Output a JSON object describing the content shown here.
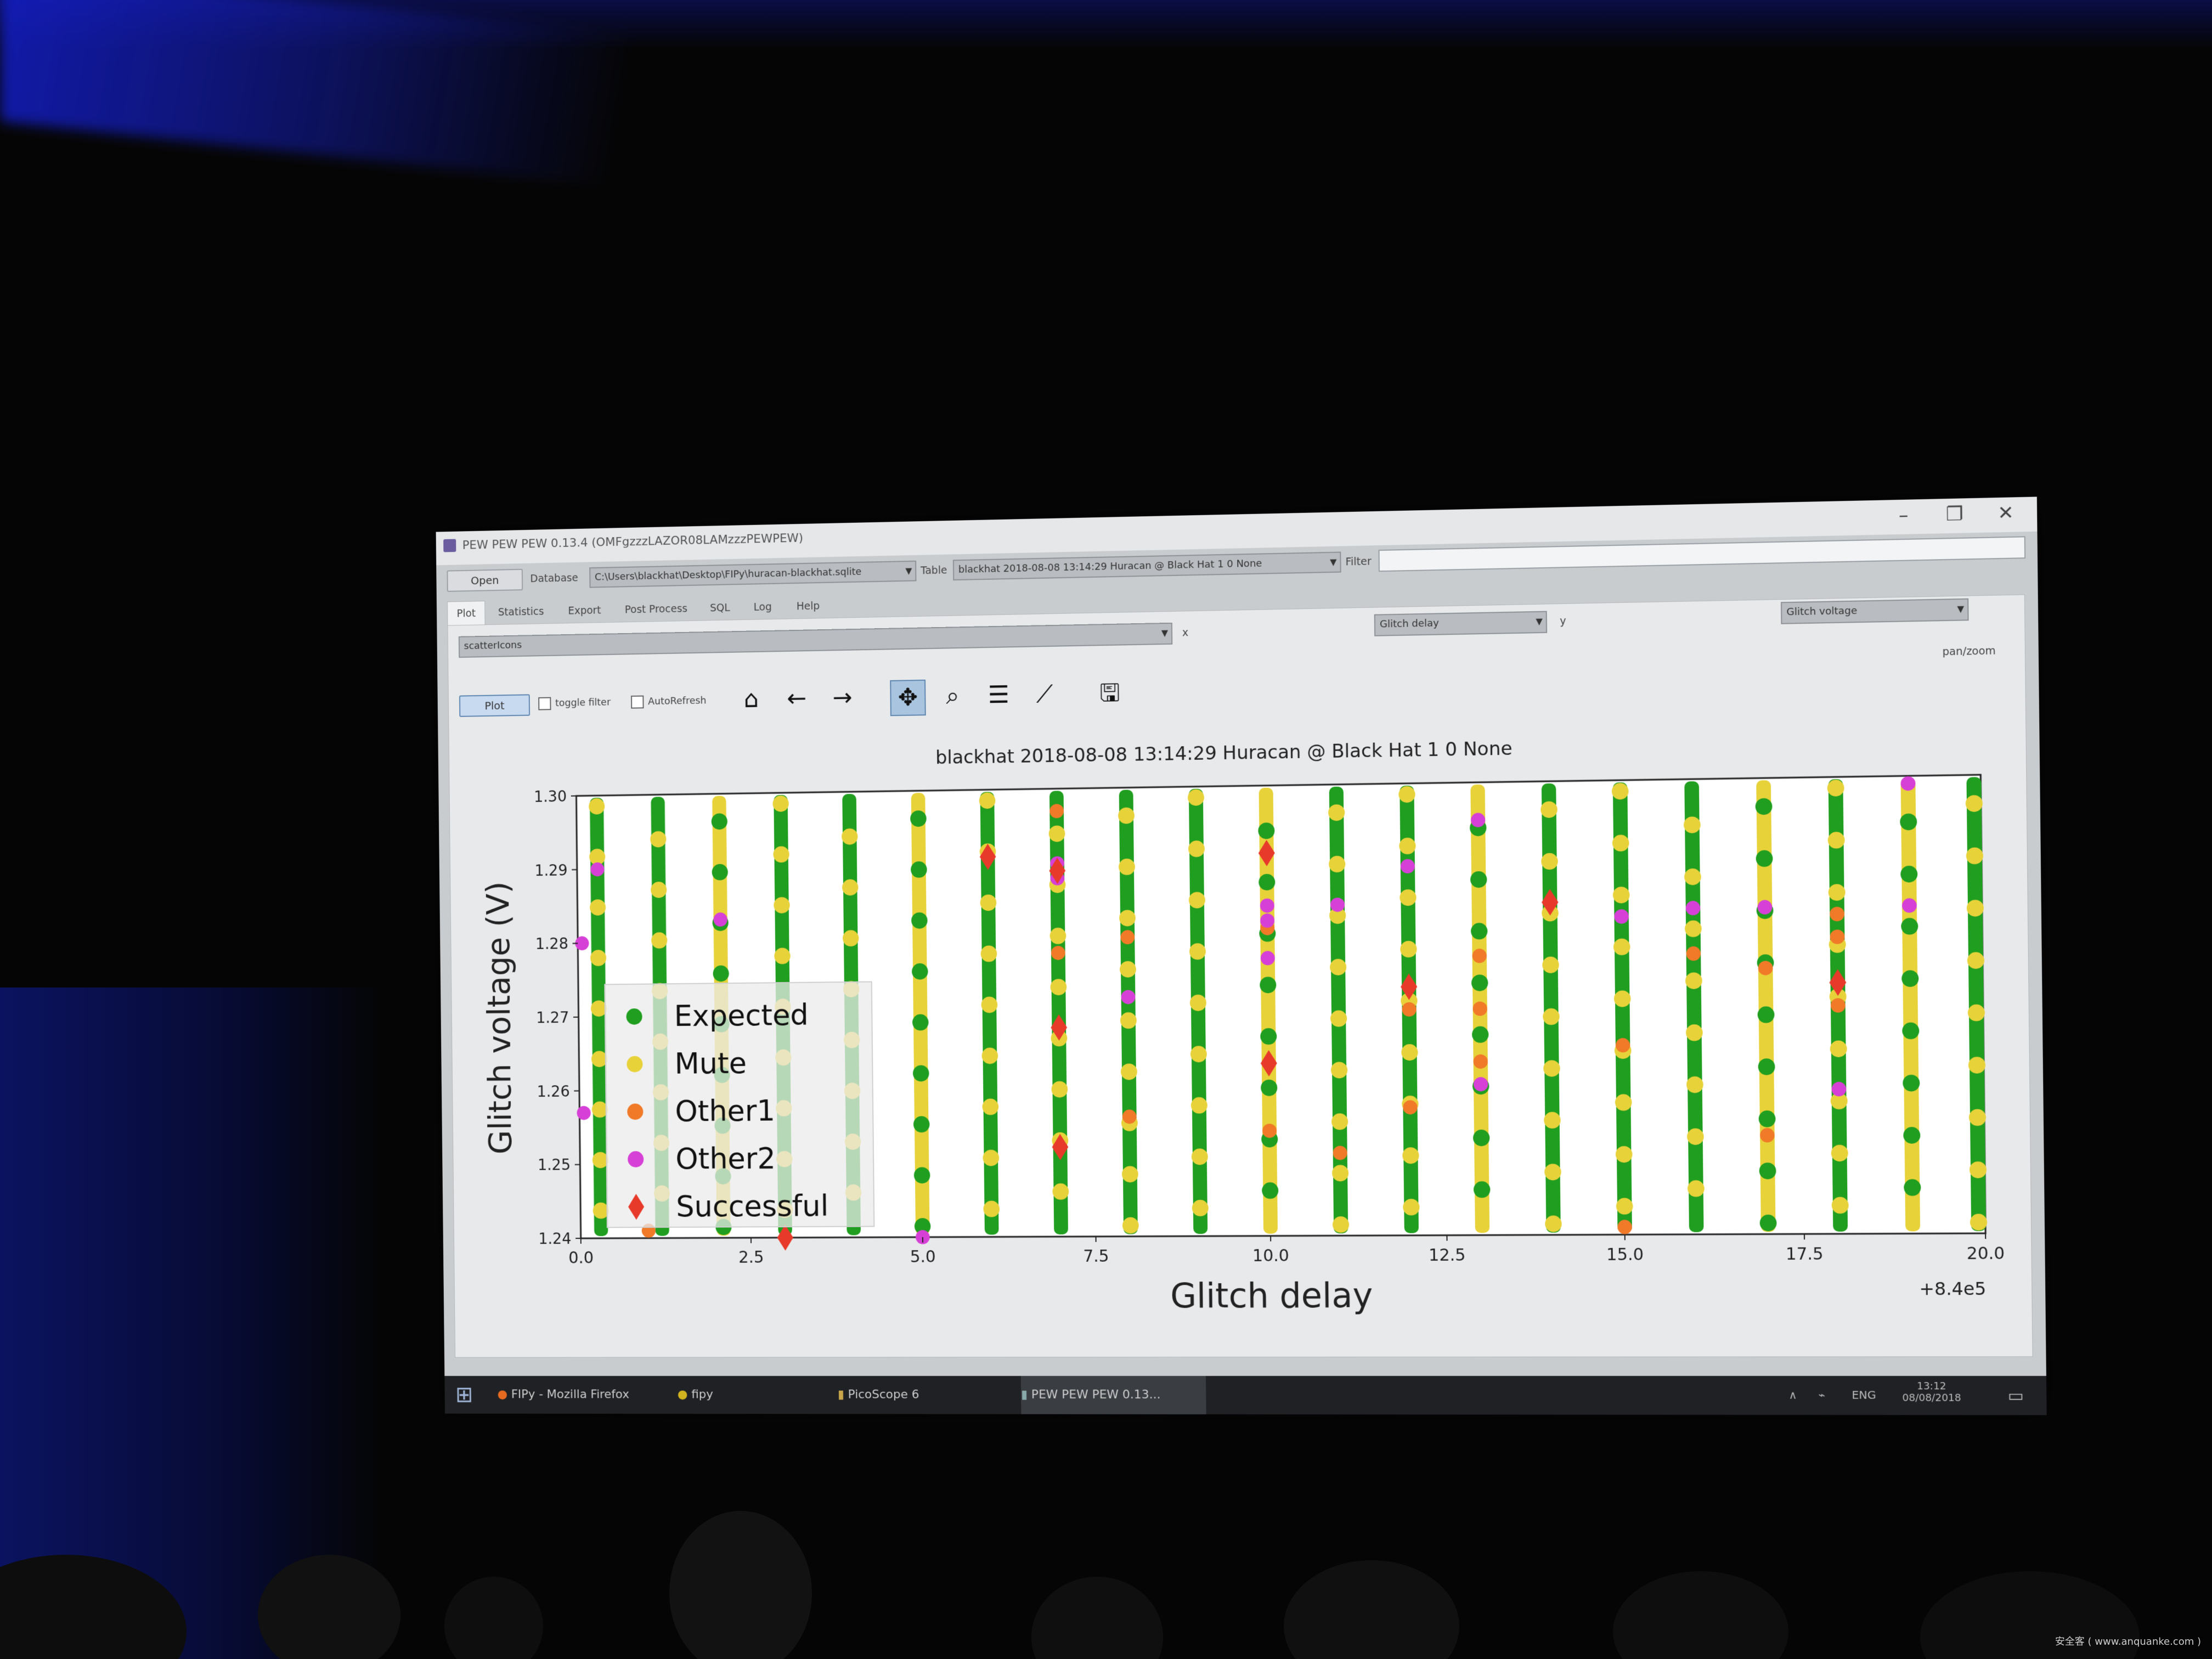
{
  "window": {
    "title": "PEW PEW PEW 0.13.4 (OMFgzzzLAZOR08LAMzzzPEWPEW)",
    "controls": {
      "minimize": "–",
      "maximize": "❐",
      "close": "✕"
    }
  },
  "toolbar": {
    "open_label": "Open",
    "database_label": "Database",
    "database_value": "C:\\Users\\blackhat\\Desktop\\FIPy\\huracan-blackhat.sqlite",
    "table_label": "Table",
    "table_value": "blackhat 2018-08-08 13:14:29 Huracan @ Black Hat 1 0 None",
    "filter_label": "Filter",
    "filter_value": ""
  },
  "tabs": [
    {
      "label": "Plot"
    },
    {
      "label": "Statistics"
    },
    {
      "label": "Export"
    },
    {
      "label": "Post Process"
    },
    {
      "label": "SQL"
    },
    {
      "label": "Log"
    },
    {
      "label": "Help"
    }
  ],
  "plot_panel": {
    "plot_type": "scatterIcons",
    "x_label_small": "x",
    "x_column": "Glitch delay",
    "y_label_small": "y",
    "y_column": "Glitch voltage",
    "mode_status": "pan/zoom",
    "plot_button": "Plot",
    "toggle_filter": "toggle filter",
    "autorefresh": "AutoRefresh"
  },
  "toolbar_icons": [
    "home-icon",
    "back-arrow-icon",
    "forward-arrow-icon",
    "pan-icon",
    "zoom-icon",
    "configure-icon",
    "edit-axis-icon",
    "save-icon"
  ],
  "chart_data": {
    "type": "scatter",
    "title": "blackhat 2018-08-08 13:14:29 Huracan @ Black Hat 1 0 None",
    "xlabel": "Glitch delay",
    "ylabel": "Glitch voltage (V)",
    "x_offset_label": "+8.4e5",
    "xlim": [
      0,
      20
    ],
    "ylim": [
      1.24,
      1.3
    ],
    "x_ticks": [
      "0.0",
      "2.5",
      "5.0",
      "7.5",
      "10.0",
      "12.5",
      "15.0",
      "17.5",
      "20.0"
    ],
    "y_ticks": [
      "1.24",
      "1.25",
      "1.26",
      "1.27",
      "1.28",
      "1.29",
      "1.30"
    ],
    "legend_position": "lower-left",
    "grid": false,
    "series": [
      {
        "name": "Expected",
        "color": "#1f9e1f",
        "marker": "circle"
      },
      {
        "name": "Mute",
        "color": "#e8d23a",
        "marker": "circle"
      },
      {
        "name": "Other1",
        "color": "#f07a28",
        "marker": "circle"
      },
      {
        "name": "Other2",
        "color": "#d640d6",
        "marker": "circle"
      },
      {
        "name": "Successful",
        "color": "#e83a2a",
        "marker": "diamond"
      }
    ],
    "columns_x": [
      0.3,
      1.2,
      2.1,
      3.0,
      4.0,
      5.0,
      6.0,
      7.0,
      8.0,
      9.0,
      10.0,
      11.0,
      12.0,
      13.0,
      14.0,
      15.0,
      16.0,
      17.0,
      18.0,
      19.0,
      20.0
    ],
    "column_dominant": [
      "Expected",
      "Expected",
      "Mute",
      "Expected",
      "Expected",
      "Mute",
      "Expected",
      "Expected",
      "Expected",
      "Expected",
      "Mute",
      "Expected",
      "Expected",
      "Mute",
      "Expected",
      "Expected",
      "Expected",
      "Mute",
      "Expected",
      "Mute",
      "Expected"
    ],
    "other1_points": [
      [
        7.0,
        1.297
      ],
      [
        7.0,
        1.278
      ],
      [
        8.0,
        1.28
      ],
      [
        8.0,
        1.256
      ],
      [
        10.0,
        1.281
      ],
      [
        10.0,
        1.254
      ],
      [
        11.0,
        1.251
      ],
      [
        12.0,
        1.27
      ],
      [
        12.0,
        1.257
      ],
      [
        13.0,
        1.277
      ],
      [
        13.0,
        1.27
      ],
      [
        13.0,
        1.263
      ],
      [
        15.0,
        1.265
      ],
      [
        15.0,
        1.241
      ],
      [
        16.0,
        1.277
      ],
      [
        17.0,
        1.275
      ],
      [
        17.0,
        1.253
      ],
      [
        18.0,
        1.282
      ],
      [
        18.0,
        1.279
      ],
      [
        18.0,
        1.27
      ],
      [
        1.0,
        1.241
      ]
    ],
    "other2_points": [
      [
        0.3,
        1.29
      ],
      [
        0.0,
        1.28
      ],
      [
        0.0,
        1.257
      ],
      [
        2.1,
        1.283
      ],
      [
        5.0,
        1.24
      ],
      [
        7.0,
        1.29
      ],
      [
        7.0,
        1.288
      ],
      [
        8.0,
        1.272
      ],
      [
        10.0,
        1.284
      ],
      [
        10.0,
        1.282
      ],
      [
        10.0,
        1.277
      ],
      [
        11.0,
        1.284
      ],
      [
        12.0,
        1.289
      ],
      [
        13.0,
        1.295
      ],
      [
        13.0,
        1.26
      ],
      [
        15.0,
        1.282
      ],
      [
        16.0,
        1.283
      ],
      [
        17.0,
        1.283
      ],
      [
        18.0,
        1.259
      ],
      [
        19.0,
        1.299
      ],
      [
        19.0,
        1.283
      ]
    ],
    "successful_points": [
      [
        7.0,
        1.268
      ],
      [
        7.0,
        1.252
      ],
      [
        10.0,
        1.263
      ],
      [
        12.0,
        1.273
      ],
      [
        14.0,
        1.284
      ],
      [
        18.0,
        1.273
      ],
      [
        3.0,
        1.24
      ],
      [
        6.0,
        1.291
      ],
      [
        10.0,
        1.291
      ],
      [
        7.0,
        1.289
      ]
    ]
  },
  "taskbar": {
    "items": [
      {
        "label": "FIPy - Mozilla Firefox",
        "icon": "firefox-icon"
      },
      {
        "label": "fipy",
        "icon": "terminal-icon"
      },
      {
        "label": "PicoScope 6",
        "icon": "picoscope-icon"
      },
      {
        "label": "PEW PEW PEW 0.13...",
        "icon": "python-icon"
      }
    ],
    "language": "ENG",
    "time": "13:12",
    "date": "08/08/2018"
  },
  "watermark": "安全客 ( www.anquanke.com )"
}
